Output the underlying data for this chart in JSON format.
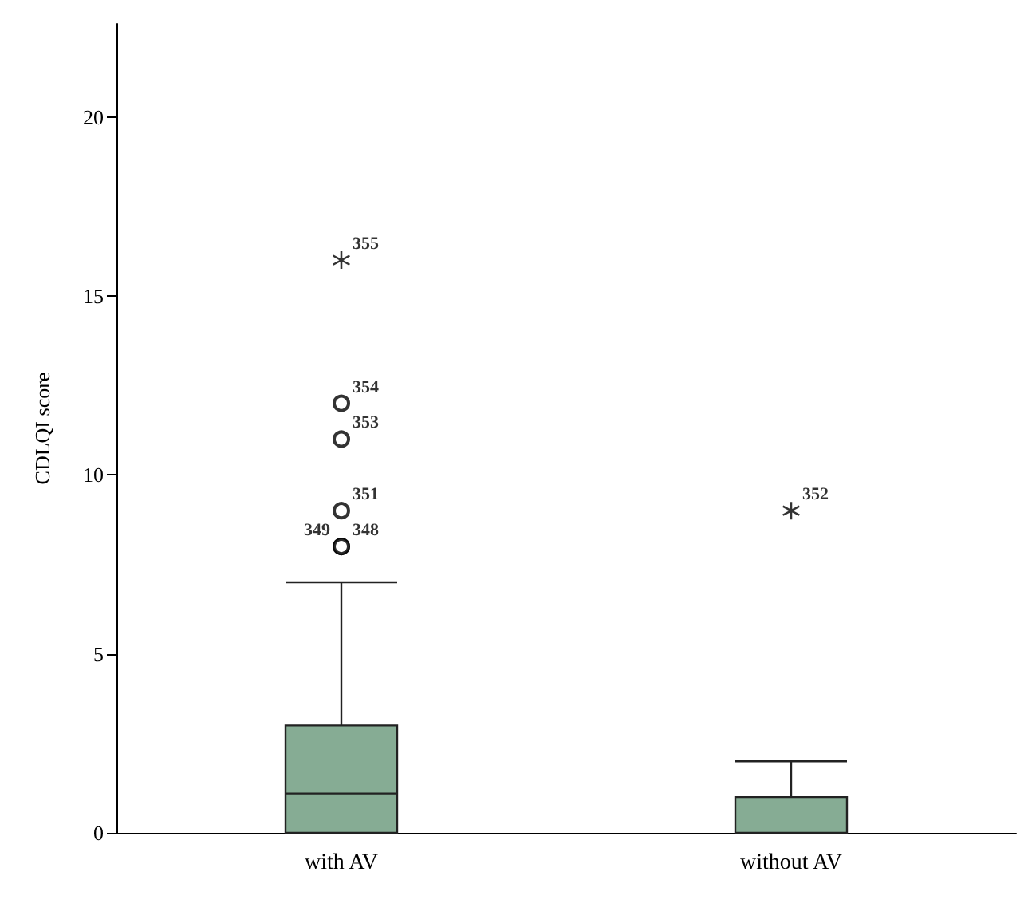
{
  "chart_data": {
    "type": "box",
    "ylabel": "CDLQI score",
    "categories": [
      "with AV",
      "without AV"
    ],
    "boxes": [
      {
        "low": 0,
        "q1": 0,
        "median": 1.1,
        "q3": 3,
        "high": 7
      },
      {
        "low": 0,
        "q1": 0,
        "median": 0,
        "q3": 1,
        "high": 2
      }
    ],
    "color": "#86ac94",
    "series": [
      {
        "type": "scatter",
        "x": [
          "with AV",
          "with AV",
          "with AV",
          "with AV",
          "with AV"
        ],
        "values": [
          8,
          8,
          9,
          11,
          12
        ],
        "marker": "circle",
        "color": "#000000"
      },
      {
        "type": "scatter",
        "x": [
          "with AV",
          "without AV"
        ],
        "values": [
          16,
          9
        ],
        "marker": "star",
        "color": "#000000"
      }
    ],
    "annotations": [
      {
        "text": "355",
        "x": "with AV",
        "y": 16
      },
      {
        "text": "354",
        "x": "with AV",
        "y": 12
      },
      {
        "text": "353",
        "x": "with AV",
        "y": 11
      },
      {
        "text": "351",
        "x": "with AV",
        "y": 9
      },
      {
        "text": "349",
        "x": "with AV",
        "y": 8
      },
      {
        "text": "348",
        "x": "with AV",
        "y": 8
      },
      {
        "text": "352",
        "x": "without AV",
        "y": 9
      }
    ],
    "ylim": [
      0,
      22.6
    ],
    "yticks": [
      0,
      5,
      10,
      15,
      20
    ],
    "grid": false
  }
}
